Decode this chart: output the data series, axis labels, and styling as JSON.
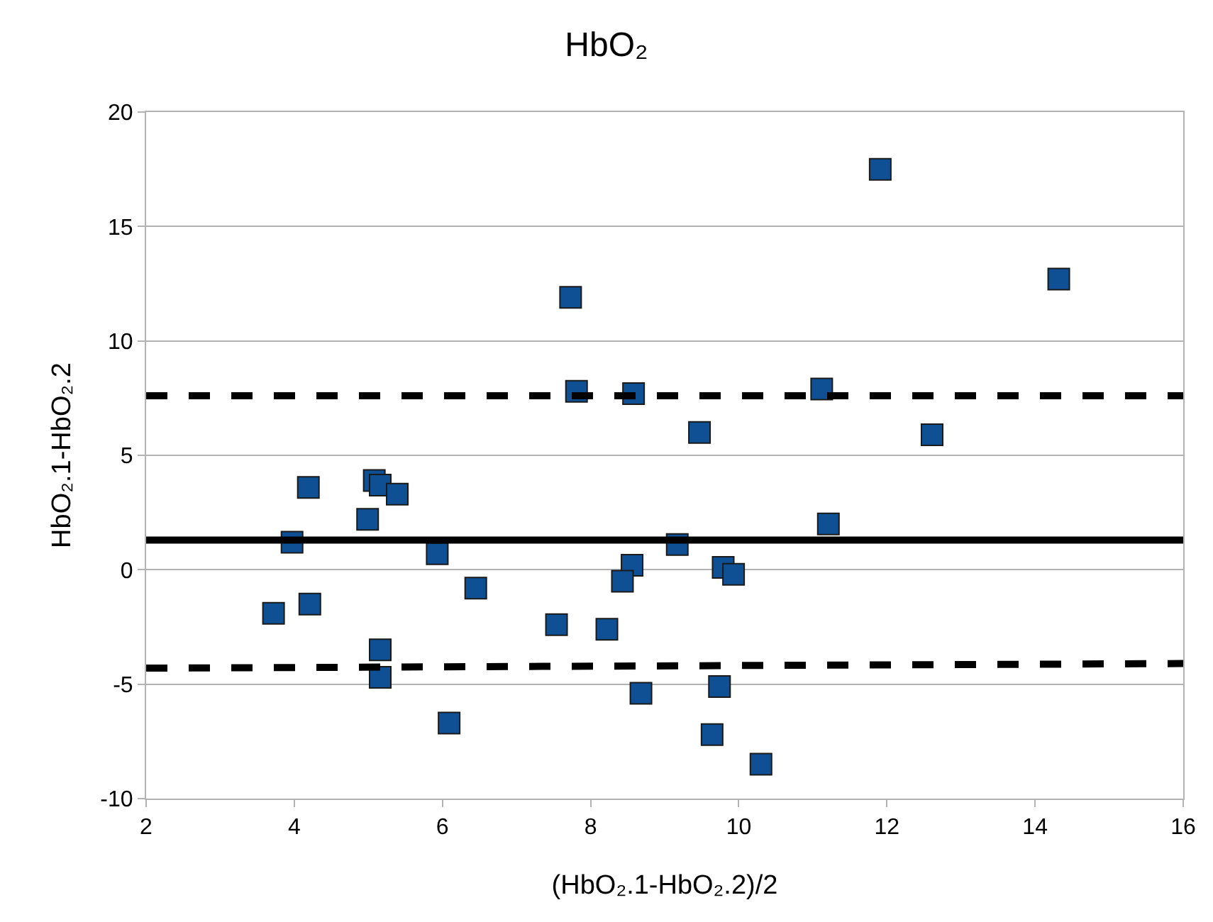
{
  "chart_data": {
    "type": "scatter",
    "title": "HbO₂",
    "xlabel": "(HbO₂.1-HbO₂.2)/2",
    "ylabel": "HbO₂.1-HbO₂.2",
    "xlim": [
      2,
      16
    ],
    "xticks": [
      2,
      4,
      6,
      8,
      10,
      12,
      14,
      16
    ],
    "ylim": [
      -10,
      20
    ],
    "yticks": [
      -10,
      -5,
      0,
      5,
      10,
      15,
      20
    ],
    "grid": "y",
    "series": [
      {
        "marker": "square",
        "color": "#0f5095",
        "x": [
          11.91,
          14.32,
          7.73,
          7.81,
          8.58,
          11.12,
          9.47,
          12.61,
          5.08,
          5.16,
          4.19,
          5.39,
          4.99,
          11.21,
          3.97,
          9.17,
          5.93,
          8.56,
          9.79,
          9.93,
          8.43,
          6.45,
          3.72,
          4.21,
          7.54,
          8.22,
          5.16,
          5.16,
          8.68,
          9.74,
          6.09,
          9.64,
          10.3
        ],
        "values": [
          17.5,
          12.7,
          11.9,
          7.8,
          7.7,
          7.9,
          6.0,
          5.9,
          3.9,
          3.7,
          3.6,
          3.3,
          2.2,
          2.0,
          1.2,
          1.1,
          0.7,
          0.2,
          0.1,
          -0.2,
          -0.5,
          -0.8,
          -1.9,
          -1.5,
          -2.4,
          -2.6,
          -3.5,
          -4.7,
          -5.4,
          -5.1,
          -6.7,
          -7.2,
          -8.5
        ]
      },
      {
        "type": "line",
        "line_style": "solid",
        "color": "#000000",
        "x": [
          2,
          16
        ],
        "values": [
          1.3,
          1.3
        ]
      },
      {
        "type": "line",
        "line_style": "dashed",
        "color": "#000000",
        "x": [
          2,
          16
        ],
        "values": [
          7.6,
          7.6
        ]
      },
      {
        "type": "line",
        "line_style": "dashed",
        "color": "#000000",
        "x": [
          2,
          16
        ],
        "values": [
          -4.3,
          -4.1
        ]
      }
    ]
  }
}
